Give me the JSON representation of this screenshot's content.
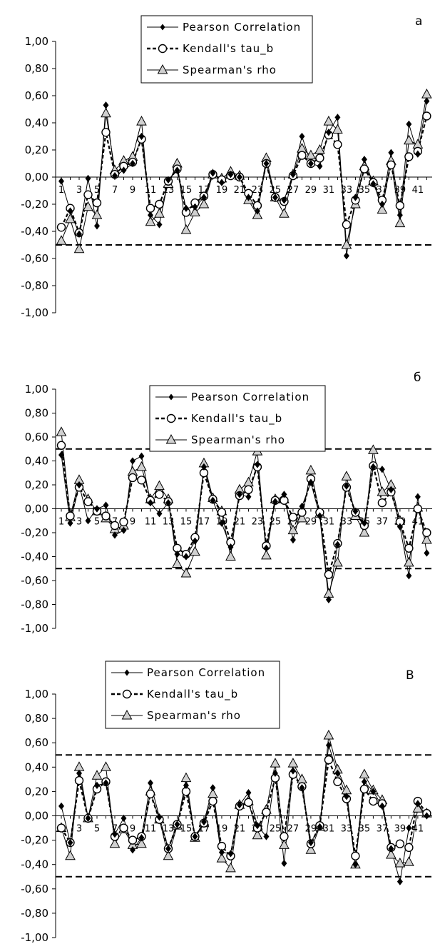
{
  "chart_data": [
    {
      "type": "line",
      "panel_label": "а",
      "ylim": [
        -1.0,
        1.0
      ],
      "yticks": [
        "1,00",
        "0,80",
        "0,60",
        "0,40",
        "0,20",
        "0,00",
        "-0,20",
        "-0,40",
        "-0,60",
        "-0,80",
        "-1,00"
      ],
      "x": [
        1,
        2,
        3,
        4,
        5,
        6,
        7,
        8,
        9,
        10,
        11,
        12,
        13,
        14,
        15,
        16,
        17,
        18,
        19,
        20,
        21,
        22,
        23,
        24,
        25,
        26,
        27,
        28,
        29,
        30,
        31,
        32,
        33,
        34,
        35,
        36,
        37,
        38,
        39,
        40,
        41,
        42
      ],
      "xtick_labels": [
        "1",
        "3",
        "5",
        "7",
        "9",
        "11",
        "13",
        "15",
        "17",
        "19",
        "21",
        "23",
        "25",
        "27",
        "29",
        "31",
        "33",
        "35",
        "37",
        "39",
        "41"
      ],
      "threshold_lines": [
        -0.5
      ],
      "legend_position": "top-center",
      "series": [
        {
          "name": "Pearson Correlation",
          "style": "solid",
          "marker": "diamond",
          "values": [
            -0.03,
            -0.25,
            -0.42,
            -0.01,
            -0.36,
            0.53,
            0.01,
            0.05,
            0.1,
            0.3,
            -0.28,
            -0.35,
            -0.02,
            0.05,
            -0.23,
            -0.22,
            -0.15,
            0.03,
            -0.04,
            0.02,
            0.0,
            -0.15,
            -0.25,
            0.1,
            -0.15,
            -0.17,
            0.02,
            0.3,
            0.1,
            0.08,
            0.33,
            0.44,
            -0.58,
            -0.15,
            0.13,
            -0.05,
            -0.2,
            0.18,
            -0.28,
            0.39,
            0.17,
            0.56
          ]
        },
        {
          "name": "Kendall's tau_b",
          "style": "dashed",
          "marker": "circle",
          "values": [
            -0.37,
            -0.23,
            -0.41,
            -0.13,
            -0.19,
            0.33,
            0.02,
            0.08,
            0.11,
            0.28,
            -0.23,
            -0.2,
            -0.03,
            0.06,
            -0.26,
            -0.19,
            -0.14,
            0.02,
            -0.02,
            0.01,
            0.0,
            -0.12,
            -0.21,
            0.1,
            -0.15,
            -0.18,
            0.01,
            0.16,
            0.1,
            0.14,
            0.31,
            0.24,
            -0.35,
            -0.17,
            0.06,
            -0.04,
            -0.17,
            0.09,
            -0.21,
            0.15,
            0.19,
            0.45
          ]
        },
        {
          "name": "Spearman's rho",
          "style": "solid",
          "marker": "triangle",
          "values": [
            -0.47,
            -0.31,
            -0.53,
            -0.22,
            -0.28,
            0.47,
            0.05,
            0.12,
            0.15,
            0.41,
            -0.33,
            -0.27,
            -0.05,
            0.1,
            -0.39,
            -0.26,
            -0.2,
            0.02,
            -0.01,
            0.04,
            0.01,
            -0.17,
            -0.28,
            0.14,
            -0.15,
            -0.27,
            0.02,
            0.21,
            0.16,
            0.2,
            0.41,
            0.35,
            -0.5,
            -0.2,
            0.08,
            -0.03,
            -0.24,
            0.12,
            -0.34,
            0.27,
            0.24,
            0.61
          ]
        }
      ]
    },
    {
      "type": "line",
      "panel_label": "б",
      "ylim": [
        -1.0,
        1.0
      ],
      "yticks": [
        "1,00",
        "0,80",
        "0,60",
        "0,40",
        "0,20",
        "0,00",
        "-0,20",
        "-0,40",
        "-0,60",
        "-0,80",
        "-1,00"
      ],
      "x": [
        1,
        2,
        3,
        4,
        5,
        6,
        7,
        8,
        9,
        10,
        11,
        12,
        13,
        14,
        15,
        16,
        17,
        18,
        19,
        20,
        21,
        22,
        23,
        24,
        25,
        26,
        27,
        28,
        29,
        30,
        31,
        32,
        33,
        34,
        35,
        36,
        37,
        38,
        39,
        40,
        41,
        42
      ],
      "xtick_labels": [
        "1",
        "3",
        "5",
        "7",
        "9",
        "11",
        "13",
        "15",
        "17",
        "19",
        "21",
        "23",
        "25",
        "27",
        "29",
        "31",
        "33",
        "35",
        "37",
        "39",
        "41"
      ],
      "threshold_lines": [
        0.5,
        -0.5
      ],
      "legend_position": "top-center",
      "series": [
        {
          "name": "Pearson Correlation",
          "style": "solid",
          "marker": "diamond",
          "values": [
            0.45,
            -0.12,
            0.2,
            -0.1,
            0.0,
            0.03,
            -0.22,
            -0.18,
            0.4,
            0.44,
            0.05,
            -0.04,
            0.05,
            -0.38,
            -0.4,
            -0.27,
            0.35,
            0.07,
            -0.12,
            -0.32,
            0.12,
            0.1,
            0.37,
            -0.33,
            0.06,
            0.12,
            -0.26,
            0.02,
            0.22,
            -0.06,
            -0.76,
            -0.3,
            0.19,
            -0.02,
            -0.12,
            0.35,
            0.33,
            0.16,
            -0.15,
            -0.56,
            0.1,
            -0.37
          ]
        },
        {
          "name": "Kendall's tau_b",
          "style": "dashed",
          "marker": "circle",
          "values": [
            0.53,
            -0.06,
            0.18,
            0.06,
            -0.02,
            -0.06,
            -0.14,
            -0.11,
            0.26,
            0.24,
            0.07,
            0.12,
            0.06,
            -0.33,
            -0.38,
            -0.24,
            0.3,
            0.08,
            -0.03,
            -0.28,
            0.11,
            0.16,
            0.35,
            -0.31,
            0.07,
            0.07,
            -0.07,
            -0.03,
            0.25,
            -0.03,
            -0.55,
            -0.29,
            0.18,
            -0.03,
            -0.14,
            0.36,
            0.05,
            0.14,
            -0.11,
            -0.33,
            0.0,
            -0.2
          ]
        },
        {
          "name": "Spearman's rho",
          "style": "solid",
          "marker": "triangle",
          "values": [
            0.64,
            -0.07,
            0.24,
            0.08,
            -0.02,
            -0.08,
            -0.17,
            -0.14,
            0.31,
            0.35,
            0.08,
            0.19,
            0.08,
            -0.46,
            -0.54,
            -0.36,
            0.38,
            0.09,
            -0.02,
            -0.4,
            0.16,
            0.22,
            0.48,
            -0.39,
            0.08,
            0.08,
            -0.18,
            -0.08,
            0.32,
            -0.04,
            -0.71,
            -0.45,
            0.27,
            -0.06,
            -0.2,
            0.49,
            0.14,
            0.2,
            -0.1,
            -0.45,
            0.01,
            -0.26
          ]
        }
      ]
    },
    {
      "type": "line",
      "panel_label": "В",
      "ylim": [
        -1.0,
        1.0
      ],
      "yticks": [
        "1,00",
        "0,80",
        "0,60",
        "0,40",
        "0,20",
        "0,00",
        "-0,20",
        "-0,40",
        "-0,60",
        "-0,80",
        "-1,00"
      ],
      "x": [
        1,
        2,
        3,
        4,
        5,
        6,
        7,
        8,
        9,
        10,
        11,
        12,
        13,
        14,
        15,
        16,
        17,
        18,
        19,
        20,
        21,
        22,
        23,
        24,
        25,
        26,
        27,
        28,
        29,
        30,
        31,
        32,
        33,
        34,
        35,
        36,
        37,
        38,
        39,
        40,
        41,
        42
      ],
      "xtick_labels": [
        "1",
        "3",
        "5",
        "7",
        "9",
        "11",
        "13",
        "15",
        "17",
        "19",
        "21",
        "23",
        "25",
        "27",
        "29",
        "31",
        "33",
        "35",
        "37",
        "39",
        "41"
      ],
      "threshold_lines": [
        0.5,
        -0.5
      ],
      "legend_position": "top-center",
      "series": [
        {
          "name": "Pearson Correlation",
          "style": "solid",
          "marker": "diamond",
          "values": [
            0.08,
            -0.22,
            0.35,
            -0.02,
            0.25,
            0.27,
            -0.15,
            -0.02,
            -0.28,
            -0.18,
            0.27,
            -0.01,
            -0.27,
            -0.07,
            0.25,
            -0.17,
            -0.05,
            0.23,
            -0.3,
            -0.31,
            0.09,
            0.19,
            -0.08,
            -0.17,
            0.35,
            -0.39,
            0.37,
            0.23,
            -0.22,
            -0.09,
            0.58,
            0.35,
            0.16,
            -0.4,
            0.28,
            0.2,
            0.08,
            -0.27,
            -0.54,
            -0.1,
            0.1,
            0.0
          ]
        },
        {
          "name": "Kendall's tau_b",
          "style": "dashed",
          "marker": "circle",
          "values": [
            -0.1,
            -0.22,
            0.29,
            -0.02,
            0.22,
            0.28,
            -0.17,
            -0.1,
            -0.2,
            -0.17,
            0.18,
            -0.03,
            -0.27,
            -0.07,
            0.2,
            -0.17,
            -0.06,
            0.12,
            -0.25,
            -0.33,
            0.08,
            0.11,
            -0.1,
            0.03,
            0.31,
            -0.17,
            0.34,
            0.24,
            -0.23,
            -0.08,
            0.46,
            0.28,
            0.14,
            -0.33,
            0.22,
            0.12,
            0.1,
            -0.26,
            -0.23,
            -0.26,
            0.12,
            0.02
          ]
        },
        {
          "name": "Spearman's rho",
          "style": "solid",
          "marker": "triangle",
          "values": [
            -0.1,
            -0.33,
            0.4,
            -0.02,
            0.33,
            0.4,
            -0.23,
            -0.11,
            -0.24,
            -0.23,
            0.2,
            -0.03,
            -0.33,
            -0.08,
            0.31,
            -0.18,
            -0.06,
            0.18,
            -0.35,
            -0.43,
            0.09,
            0.12,
            -0.16,
            0.05,
            0.43,
            -0.24,
            0.43,
            0.3,
            -0.28,
            -0.09,
            0.66,
            0.38,
            0.21,
            -0.4,
            0.34,
            0.21,
            0.13,
            -0.32,
            -0.39,
            -0.38,
            0.06,
            0.02
          ]
        }
      ]
    }
  ]
}
